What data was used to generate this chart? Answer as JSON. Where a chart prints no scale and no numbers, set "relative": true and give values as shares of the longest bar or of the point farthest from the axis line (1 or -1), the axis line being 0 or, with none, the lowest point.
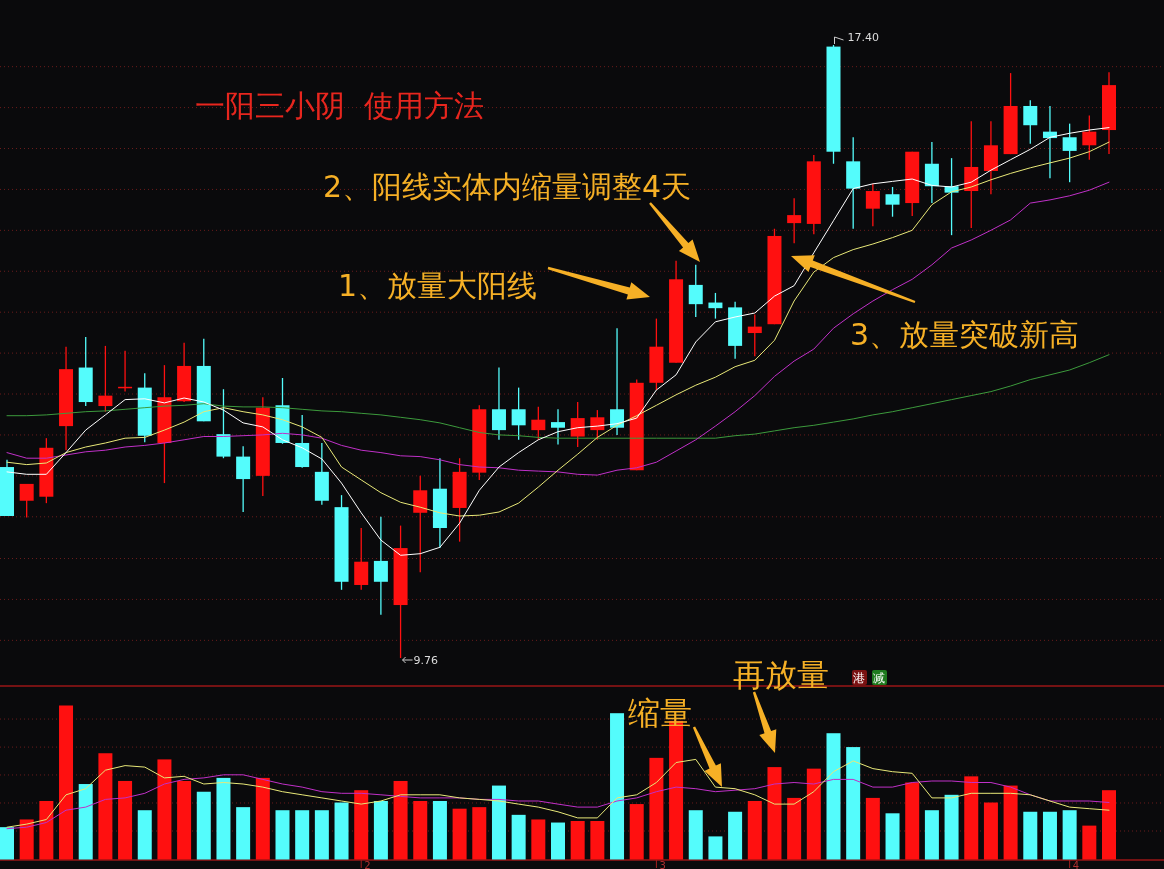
{
  "chart_data": [
    {
      "type": "candlestick",
      "title": "一阳三小阴  使用方法",
      "tick_labels": false,
      "grid": "y",
      "yticks": [
        {
          "value": 9.98,
          "label": null
        },
        {
          "value": 10.49,
          "label": null
        },
        {
          "value": 11.0,
          "label": null
        },
        {
          "value": 11.52,
          "label": null
        },
        {
          "value": 12.03,
          "label": null
        },
        {
          "value": 12.54,
          "label": null
        },
        {
          "value": 13.05,
          "label": null
        },
        {
          "value": 13.56,
          "label": null
        },
        {
          "value": 14.07,
          "label": null
        },
        {
          "value": 14.58,
          "label": null
        },
        {
          "value": 15.09,
          "label": null
        },
        {
          "value": 15.6,
          "label": null
        },
        {
          "value": 16.11,
          "label": null
        },
        {
          "value": 16.62,
          "label": null
        },
        {
          "value": 17.13,
          "label": null
        }
      ],
      "categories": [
        null,
        null,
        null,
        null,
        null,
        null,
        null,
        null,
        null,
        null,
        null,
        null,
        null,
        null,
        null,
        null,
        null,
        null,
        null,
        null,
        null,
        null,
        null,
        null,
        null,
        null,
        null,
        null,
        null,
        null,
        null,
        null,
        null,
        null,
        null,
        null,
        null,
        null,
        null,
        null,
        null,
        null,
        null,
        null,
        null,
        null,
        null,
        null,
        null,
        null,
        null,
        null,
        null,
        null,
        null,
        null,
        null
      ],
      "ohlc": [
        [
          12.14,
          12.23,
          11.53,
          11.53
        ],
        [
          11.72,
          11.93,
          11.51,
          11.93
        ],
        [
          11.77,
          12.5,
          11.69,
          12.38
        ],
        [
          12.65,
          13.64,
          12.35,
          13.36
        ],
        [
          13.38,
          13.76,
          12.9,
          12.95
        ],
        [
          12.9,
          13.65,
          12.83,
          13.03
        ],
        [
          13.13,
          13.59,
          13.08,
          13.14
        ],
        [
          13.13,
          13.31,
          12.45,
          12.53
        ],
        [
          12.44,
          13.41,
          11.94,
          13.01
        ],
        [
          12.96,
          13.69,
          12.95,
          13.4
        ],
        [
          13.4,
          13.74,
          12.71,
          12.71
        ],
        [
          12.55,
          13.11,
          12.25,
          12.27
        ],
        [
          12.27,
          12.4,
          11.58,
          11.99
        ],
        [
          12.03,
          13.01,
          11.78,
          12.88
        ],
        [
          12.91,
          13.25,
          12.43,
          12.44
        ],
        [
          12.44,
          12.79,
          12.13,
          12.14
        ],
        [
          12.08,
          12.44,
          11.67,
          11.72
        ],
        [
          11.64,
          11.79,
          10.61,
          10.71
        ],
        [
          10.67,
          11.38,
          10.61,
          10.96
        ],
        [
          10.97,
          11.52,
          10.3,
          10.71
        ],
        [
          10.42,
          11.41,
          9.76,
          11.13
        ],
        [
          11.57,
          12.03,
          10.83,
          11.85
        ],
        [
          11.87,
          12.25,
          11.13,
          11.38
        ],
        [
          11.63,
          12.25,
          11.21,
          12.08
        ],
        [
          12.07,
          12.91,
          11.98,
          12.86
        ],
        [
          12.86,
          13.38,
          12.48,
          12.6
        ],
        [
          12.86,
          13.13,
          12.48,
          12.66
        ],
        [
          12.6,
          12.89,
          12.48,
          12.73
        ],
        [
          12.7,
          12.86,
          12.42,
          12.63
        ],
        [
          12.52,
          12.95,
          12.39,
          12.75
        ],
        [
          12.6,
          12.85,
          12.48,
          12.76
        ],
        [
          12.86,
          13.87,
          12.54,
          12.63
        ],
        [
          12.1,
          13.23,
          12.1,
          13.19
        ],
        [
          13.19,
          13.99,
          13.1,
          13.64
        ],
        [
          13.44,
          14.71,
          13.44,
          14.48
        ],
        [
          14.41,
          14.66,
          14.01,
          14.17
        ],
        [
          14.19,
          14.31,
          13.99,
          14.12
        ],
        [
          14.13,
          14.2,
          13.49,
          13.65
        ],
        [
          13.81,
          14.04,
          13.52,
          13.89
        ],
        [
          13.92,
          15.11,
          13.92,
          15.02
        ],
        [
          15.18,
          15.49,
          14.93,
          15.28
        ],
        [
          15.17,
          16.03,
          15.04,
          15.95
        ],
        [
          17.38,
          17.4,
          15.92,
          16.07
        ],
        [
          15.95,
          16.25,
          15.11,
          15.61
        ],
        [
          15.36,
          15.67,
          15.14,
          15.58
        ],
        [
          15.54,
          15.63,
          15.26,
          15.41
        ],
        [
          15.43,
          16.07,
          15.27,
          16.07
        ],
        [
          15.92,
          16.19,
          15.43,
          15.64
        ],
        [
          15.64,
          15.99,
          15.03,
          15.56
        ],
        [
          15.58,
          16.45,
          15.12,
          15.88
        ],
        [
          15.83,
          16.45,
          15.54,
          16.15
        ],
        [
          16.04,
          17.05,
          16.04,
          16.64
        ],
        [
          16.64,
          16.71,
          16.17,
          16.4
        ],
        [
          16.32,
          16.64,
          15.74,
          16.24
        ],
        [
          16.25,
          16.42,
          15.69,
          16.08
        ],
        [
          16.15,
          16.52,
          15.97,
          16.32
        ],
        [
          16.34,
          17.06,
          16.04,
          16.9
        ]
      ],
      "colors": [
        "#54fcfc",
        "#ff1010",
        "#ff1010",
        "#ff1010",
        "#54fcfc",
        "#ff1010",
        "#ff1010",
        "#54fcfc",
        "#ff1010",
        "#ff1010",
        "#54fcfc",
        "#54fcfc",
        "#54fcfc",
        "#ff1010",
        "#54fcfc",
        "#54fcfc",
        "#54fcfc",
        "#54fcfc",
        "#ff1010",
        "#54fcfc",
        "#ff1010",
        "#ff1010",
        "#54fcfc",
        "#ff1010",
        "#ff1010",
        "#54fcfc",
        "#54fcfc",
        "#ff1010",
        "#54fcfc",
        "#ff1010",
        "#ff1010",
        "#54fcfc",
        "#ff1010",
        "#ff1010",
        "#ff1010",
        "#54fcfc",
        "#54fcfc",
        "#54fcfc",
        "#ff1010",
        "#ff1010",
        "#ff1010",
        "#ff1010",
        "#54fcfc",
        "#54fcfc",
        "#ff1010",
        "#54fcfc",
        "#ff1010",
        "#54fcfc",
        "#54fcfc",
        "#ff1010",
        "#ff1010",
        "#ff1010",
        "#54fcfc",
        "#54fcfc",
        "#54fcfc",
        "#ff1010",
        "#ff1010"
      ],
      "series": [
        {
          "type": "line",
          "color": "#3c9a3c",
          "values": [
            12.78,
            12.78,
            12.79,
            12.81,
            12.83,
            12.84,
            12.86,
            12.88,
            12.9,
            12.91,
            12.93,
            12.9,
            12.89,
            12.89,
            12.88,
            12.86,
            12.84,
            12.83,
            12.81,
            12.79,
            12.76,
            12.73,
            12.69,
            12.63,
            12.57,
            12.54,
            12.53,
            12.51,
            12.5,
            12.5,
            12.5,
            12.5,
            12.5,
            12.5,
            12.5,
            12.5,
            12.5,
            12.53,
            12.55,
            12.59,
            12.63,
            12.66,
            12.7,
            12.74,
            12.79,
            12.83,
            12.88,
            12.93,
            12.98,
            13.03,
            13.08,
            13.15,
            13.23,
            13.29,
            13.35,
            13.44,
            13.54
          ]
        },
        {
          "type": "line",
          "color": "#c030c8",
          "values": [
            12.32,
            12.25,
            12.25,
            12.29,
            12.33,
            12.35,
            12.39,
            12.41,
            12.44,
            12.48,
            12.52,
            12.52,
            12.53,
            12.54,
            12.56,
            12.54,
            12.5,
            12.41,
            12.35,
            12.32,
            12.28,
            12.27,
            12.23,
            12.17,
            12.14,
            12.13,
            12.1,
            12.09,
            12.08,
            12.05,
            12.04,
            12.1,
            12.13,
            12.2,
            12.34,
            12.48,
            12.65,
            12.83,
            13.03,
            13.27,
            13.46,
            13.61,
            13.87,
            14.05,
            14.21,
            14.35,
            14.48,
            14.66,
            14.87,
            14.97,
            15.09,
            15.22,
            15.43,
            15.47,
            15.52,
            15.59,
            15.69
          ]
        },
        {
          "type": "line",
          "color": "#e8e878",
          "values": [
            12.2,
            12.17,
            12.19,
            12.32,
            12.39,
            12.44,
            12.5,
            12.51,
            12.6,
            12.7,
            12.83,
            12.88,
            12.83,
            12.79,
            12.73,
            12.64,
            12.51,
            12.14,
            11.98,
            11.82,
            11.7,
            11.64,
            11.57,
            11.53,
            11.54,
            11.58,
            11.69,
            11.89,
            12.1,
            12.3,
            12.51,
            12.66,
            12.78,
            12.91,
            13.04,
            13.16,
            13.26,
            13.39,
            13.47,
            13.72,
            14.21,
            14.57,
            14.75,
            14.85,
            14.92,
            15.0,
            15.09,
            15.41,
            15.57,
            15.63,
            15.72,
            15.8,
            15.87,
            15.93,
            15.99,
            16.07,
            16.19
          ]
        },
        {
          "type": "line",
          "color": "#ffffff",
          "values": [
            12.08,
            12.05,
            12.05,
            12.32,
            12.6,
            12.79,
            12.98,
            12.99,
            12.94,
            13.0,
            12.95,
            12.85,
            12.69,
            12.64,
            12.48,
            12.38,
            12.24,
            11.94,
            11.57,
            11.23,
            11.04,
            11.06,
            11.14,
            11.44,
            11.85,
            12.14,
            12.32,
            12.48,
            12.58,
            12.63,
            12.65,
            12.68,
            12.75,
            13.1,
            13.29,
            13.7,
            13.95,
            14.01,
            14.06,
            14.27,
            14.4,
            14.81,
            15.21,
            15.61,
            15.67,
            15.7,
            15.73,
            15.65,
            15.63,
            15.69,
            15.84,
            15.97,
            16.1,
            16.25,
            16.3,
            16.34,
            16.37
          ]
        }
      ],
      "annotations": [
        "17.40",
        "2、阳线实体内缩量调整4天",
        "1、放量大阳线",
        "3、放量突破新高",
        "9.76"
      ]
    },
    {
      "type": "bar",
      "relative": true,
      "tick_labels": "x",
      "ref_lines": [
        {
          "axis": "y",
          "value": 0.185,
          "color": "#6a1c1c",
          "line_style": "dotted"
        },
        {
          "axis": "y",
          "value": 0.367,
          "color": "#6a1c1c",
          "line_style": "dotted"
        },
        {
          "axis": "y",
          "value": 0.549,
          "color": "#6a1c1c",
          "line_style": "dotted"
        },
        {
          "axis": "y",
          "value": 0.73,
          "color": "#6a1c1c",
          "line_style": "dotted"
        },
        {
          "axis": "y",
          "value": 0.912,
          "color": "#6a1c1c",
          "line_style": "dotted"
        }
      ],
      "categories": [
        null,
        null,
        null,
        null,
        null,
        null,
        null,
        null,
        null,
        null,
        null,
        null,
        null,
        null,
        null,
        null,
        null,
        null,
        "2",
        null,
        null,
        null,
        null,
        null,
        null,
        null,
        null,
        null,
        null,
        null,
        null,
        null,
        null,
        "3",
        null,
        null,
        null,
        null,
        null,
        null,
        null,
        null,
        null,
        null,
        null,
        null,
        null,
        null,
        null,
        null,
        null,
        null,
        null,
        null,
        "4",
        null,
        null
      ],
      "series": [
        {
          "type": "bar",
          "values": [
            0.21,
            0.26,
            0.38,
            1,
            0.49,
            0.69,
            0.51,
            0.32,
            0.65,
            0.51,
            0.44,
            0.53,
            0.34,
            0.53,
            0.32,
            0.32,
            0.32,
            0.37,
            0.45,
            0.38,
            0.51,
            0.38,
            0.38,
            0.33,
            0.34,
            0.48,
            0.29,
            0.26,
            0.24,
            0.25,
            0.25,
            0.95,
            0.36,
            0.66,
            0.9,
            0.32,
            0.15,
            0.31,
            0.38,
            0.6,
            0.4,
            0.59,
            0.82,
            0.73,
            0.4,
            0.3,
            0.5,
            0.32,
            0.42,
            0.54,
            0.37,
            0.48,
            0.31,
            0.31,
            0.32,
            0.22,
            0.45
          ],
          "colors": [
            "#54fcfc",
            "#ff1010",
            "#ff1010",
            "#ff1010",
            "#54fcfc",
            "#ff1010",
            "#ff1010",
            "#54fcfc",
            "#ff1010",
            "#ff1010",
            "#54fcfc",
            "#54fcfc",
            "#54fcfc",
            "#ff1010",
            "#54fcfc",
            "#54fcfc",
            "#54fcfc",
            "#54fcfc",
            "#ff1010",
            "#54fcfc",
            "#ff1010",
            "#ff1010",
            "#54fcfc",
            "#ff1010",
            "#ff1010",
            "#54fcfc",
            "#54fcfc",
            "#ff1010",
            "#54fcfc",
            "#ff1010",
            "#ff1010",
            "#54fcfc",
            "#ff1010",
            "#ff1010",
            "#ff1010",
            "#54fcfc",
            "#54fcfc",
            "#54fcfc",
            "#ff1010",
            "#ff1010",
            "#ff1010",
            "#ff1010",
            "#54fcfc",
            "#54fcfc",
            "#ff1010",
            "#54fcfc",
            "#ff1010",
            "#54fcfc",
            "#54fcfc",
            "#ff1010",
            "#ff1010",
            "#ff1010",
            "#54fcfc",
            "#54fcfc",
            "#54fcfc",
            "#ff1010",
            "#ff1010"
          ]
        },
        {
          "type": "line",
          "color": "#c030c8",
          "values": [
            0.2,
            0.21,
            0.24,
            0.32,
            0.34,
            0.39,
            0.4,
            0.43,
            0.49,
            0.52,
            0.53,
            0.55,
            0.55,
            0.52,
            0.49,
            0.47,
            0.44,
            0.43,
            0.43,
            0.42,
            0.41,
            0.4,
            0.4,
            0.4,
            0.39,
            0.39,
            0.38,
            0.38,
            0.36,
            0.34,
            0.34,
            0.38,
            0.4,
            0.44,
            0.47,
            0.46,
            0.44,
            0.45,
            0.46,
            0.49,
            0.5,
            0.49,
            0.52,
            0.52,
            0.47,
            0.47,
            0.5,
            0.51,
            0.51,
            0.5,
            0.5,
            0.47,
            0.42,
            0.38,
            0.38,
            0.38,
            0.37
          ]
        },
        {
          "type": "line",
          "color": "#e8e878",
          "values": [
            0.21,
            0.23,
            0.26,
            0.42,
            0.46,
            0.58,
            0.61,
            0.6,
            0.53,
            0.54,
            0.49,
            0.5,
            0.49,
            0.47,
            0.44,
            0.42,
            0.4,
            0.38,
            0.36,
            0.38,
            0.42,
            0.42,
            0.42,
            0.4,
            0.39,
            0.38,
            0.36,
            0.34,
            0.31,
            0.27,
            0.27,
            0.4,
            0.42,
            0.5,
            0.63,
            0.65,
            0.47,
            0.46,
            0.42,
            0.36,
            0.36,
            0.44,
            0.57,
            0.64,
            0.59,
            0.57,
            0.56,
            0.4,
            0.4,
            0.43,
            0.43,
            0.43,
            0.42,
            0.38,
            0.34,
            0.33,
            0.32
          ]
        }
      ],
      "annotations": [
        "缩量",
        "再放量",
        "港",
        "减"
      ]
    }
  ]
}
